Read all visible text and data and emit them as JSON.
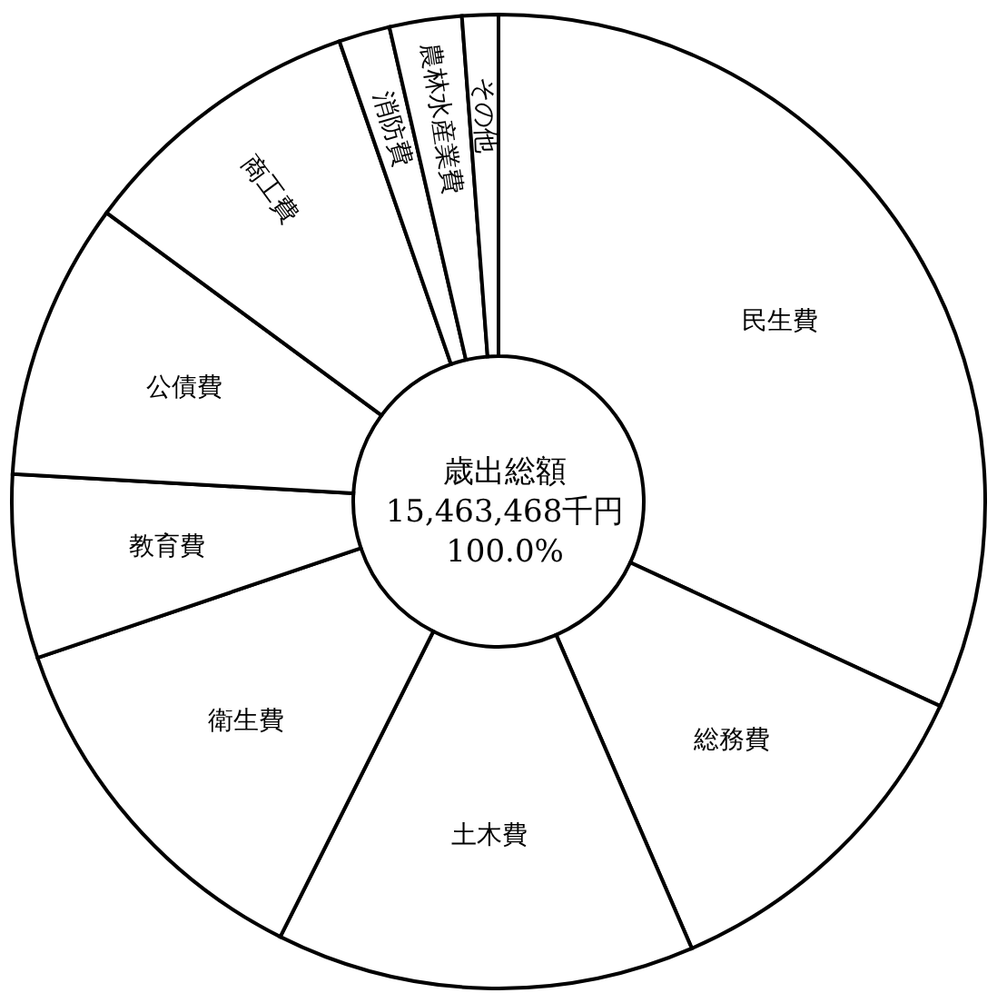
{
  "chart_data": {
    "type": "donut",
    "categories": [
      "民生費",
      "総務費",
      "土木費",
      "衛生費",
      "教育費",
      "公債費",
      "商工費",
      "消防費",
      "農林水産業費",
      "その他"
    ],
    "values": [
      31.9,
      11.6,
      13.9,
      12.4,
      6.1,
      9.2,
      9.6,
      1.7,
      2.4,
      1.2
    ],
    "colors": [
      "#ffffff",
      "#ffffff",
      "#ffffff",
      "#ffffff",
      "#ffffff",
      "#ffffff",
      "#ffffff",
      "#ffffff",
      "#ffffff",
      "#ffffff"
    ],
    "annotations": [
      "歳出総額",
      "15,463,468千円",
      "100.0%"
    ]
  }
}
